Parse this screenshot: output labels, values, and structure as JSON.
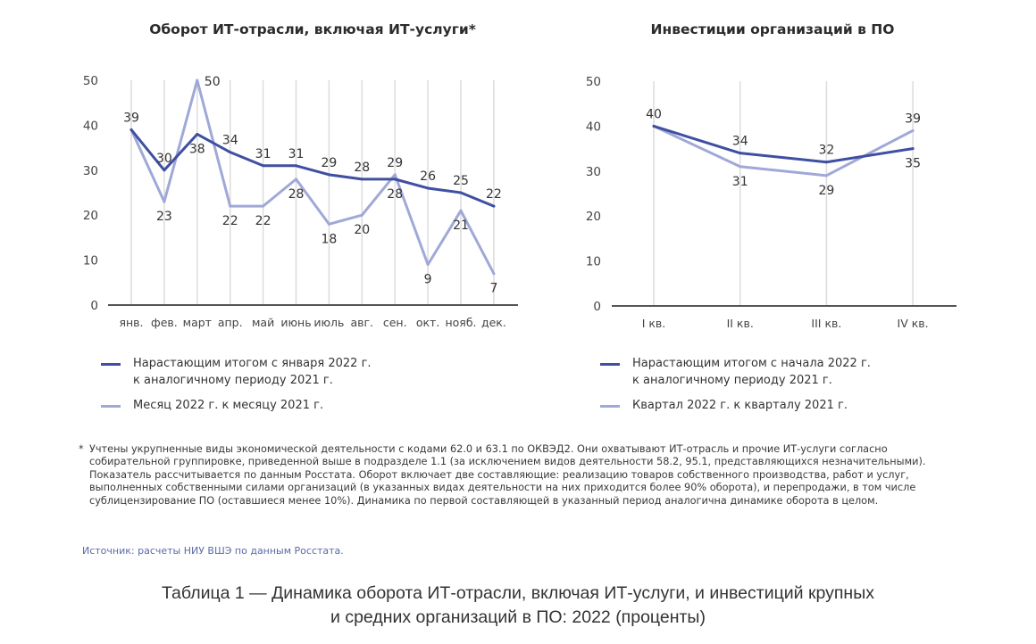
{
  "colors": {
    "cumulative": "#3f4fa1",
    "period": "#a0a8d8",
    "grid": "#dcdcdc",
    "axis": "#555555",
    "source_text": "#5a6aa8"
  },
  "chart_data": [
    {
      "type": "line",
      "title": "Оборот ИТ-отрасли, включая ИТ-услуги*",
      "categories": [
        "янв.",
        "фев.",
        "март",
        "апр.",
        "май",
        "июнь",
        "июль",
        "авг.",
        "сен.",
        "окт.",
        "нояб.",
        "дек."
      ],
      "yticks": [
        "0",
        "10",
        "20",
        "30",
        "40",
        "50"
      ],
      "ylim": [
        0,
        50
      ],
      "grid": "vertical",
      "legend_position": "bottom",
      "series": [
        {
          "name": "Нарастающим итогом с января 2022 г. к аналогичному периоду 2021 г.",
          "legend_line1": "Нарастающим итогом с января 2022 г.",
          "legend_line2": "к аналогичному периоду 2021 г.",
          "values": [
            39,
            30,
            38,
            34,
            31,
            31,
            29,
            28,
            28,
            26,
            25,
            22
          ],
          "label_pos": [
            "above",
            "above",
            "below",
            "above",
            "above",
            "above",
            "above",
            "above",
            "below",
            "above",
            "above",
            "above"
          ]
        },
        {
          "name": "Месяц 2022 г. к месяцу 2021 г.",
          "legend_line1": "Месяц 2022 г. к месяцу 2021 г.",
          "legend_line2": "",
          "values": [
            39,
            23,
            50,
            22,
            22,
            28,
            18,
            20,
            29,
            9,
            21,
            7
          ],
          "label_pos": [
            "none",
            "below",
            "right",
            "below",
            "below",
            "below",
            "below",
            "below",
            "above",
            "below",
            "below",
            "below"
          ]
        }
      ]
    },
    {
      "type": "line",
      "title": "Инвестиции организаций в ПО",
      "categories": [
        "I кв.",
        "II кв.",
        "III кв.",
        "IV кв."
      ],
      "yticks": [
        "0",
        "10",
        "20",
        "30",
        "40",
        "50"
      ],
      "ylim": [
        0,
        50
      ],
      "grid": "vertical",
      "legend_position": "bottom",
      "series": [
        {
          "name": "Нарастающим итогом с начала 2022 г. к аналогичному периоду 2021 г.",
          "legend_line1": "Нарастающим итогом с начала 2022 г.",
          "legend_line2": "к аналогичному периоду 2021 г.",
          "values": [
            40,
            34,
            32,
            35
          ],
          "label_pos": [
            "above",
            "above",
            "above",
            "below"
          ]
        },
        {
          "name": "Квартал 2022 г. к кварталу 2021 г.",
          "legend_line1": "Квартал 2022 г. к кварталу 2021 г.",
          "legend_line2": "",
          "values": [
            40,
            31,
            29,
            39
          ],
          "label_pos": [
            "none",
            "below",
            "below",
            "above"
          ]
        }
      ]
    }
  ],
  "footnote": {
    "marker": "*",
    "text": "Учтены укрупненные виды экономической деятельности с кодами 62.0 и 63.1 по ОКВЭД2. Они охватывают ИТ-отрасль и прочие ИТ-услуги согласно собирательной группировке, приведенной выше в подразделе 1.1 (за исключением видов деятельности 58.2, 95.1, представляющихся незначительными). Показатель рассчитывается по данным Росстата. Оборот включает две составляющие: реализацию товаров собственного производства, работ и услуг, выполненных собственными силами организаций (в указанных видах деятельности на них приходится более 90% оборота), и перепродажи, в том числе сублицензирование ПО (оставшиеся менее 10%). Динамика по первой составляющей в указанный период аналогична динамике оборота в целом."
  },
  "source": "Источник: расчеты НИУ ВШЭ по данным Росстата.",
  "caption": {
    "line1": "Таблица 1 — Динамика оборота ИТ-отрасли, включая ИТ-услуги, и инвестиций крупных",
    "line2": "и средних организаций в ПО: 2022 (проценты)"
  }
}
